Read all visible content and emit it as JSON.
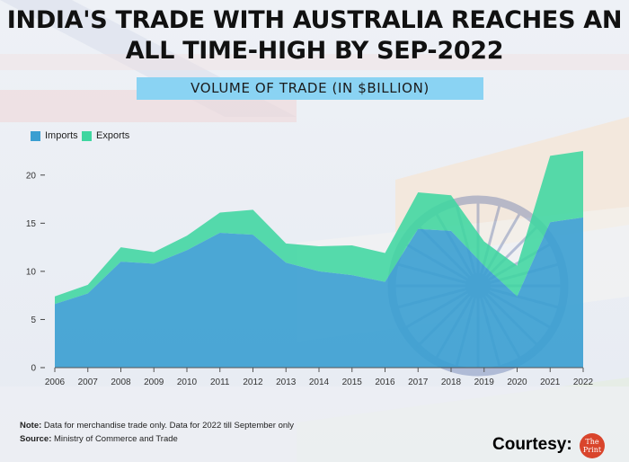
{
  "title_line1": "INDIA'S TRADE WITH AUSTRALIA REACHES AN",
  "title_line2": "ALL TIME-HIGH BY SEP-2022",
  "subtitle": "VOLUME OF TRADE (IN $BILLION)",
  "colors": {
    "imports": "#3a9ed1",
    "exports": "#3fd6a0",
    "subtitle_box": "#8ad3f3",
    "logo": "#d9452c"
  },
  "chart_data": {
    "type": "area",
    "x": [
      "2006",
      "2007",
      "2008",
      "2009",
      "2010",
      "2011",
      "2012",
      "2013",
      "2014",
      "2015",
      "2016",
      "2017",
      "2018",
      "2019",
      "2020",
      "2021",
      "2022"
    ],
    "series": [
      {
        "name": "Imports",
        "values": [
          6.6,
          7.7,
          11.0,
          10.8,
          12.2,
          14.0,
          13.8,
          10.9,
          10.0,
          9.6,
          8.9,
          14.4,
          14.2,
          10.6,
          7.4,
          15.1,
          15.6
        ]
      },
      {
        "name": "Exports",
        "values": [
          0.8,
          0.9,
          1.5,
          1.2,
          1.5,
          2.1,
          2.6,
          2.0,
          2.6,
          3.1,
          3.0,
          3.8,
          3.7,
          2.5,
          3.2,
          6.9,
          6.9
        ]
      }
    ],
    "stacked": true,
    "ylim": [
      0,
      22.5
    ],
    "yticks": [
      0,
      5,
      10,
      15,
      20
    ],
    "legend_position": "top-left",
    "grid": false
  },
  "notes": {
    "note_label": "Note:",
    "note_text": "Data for merchandise trade only. Data for 2022 till September only",
    "source_label": "Source:",
    "source_text": "Ministry of Commerce and Trade"
  },
  "courtesy": "Courtesy:",
  "logo_text": "The Print"
}
